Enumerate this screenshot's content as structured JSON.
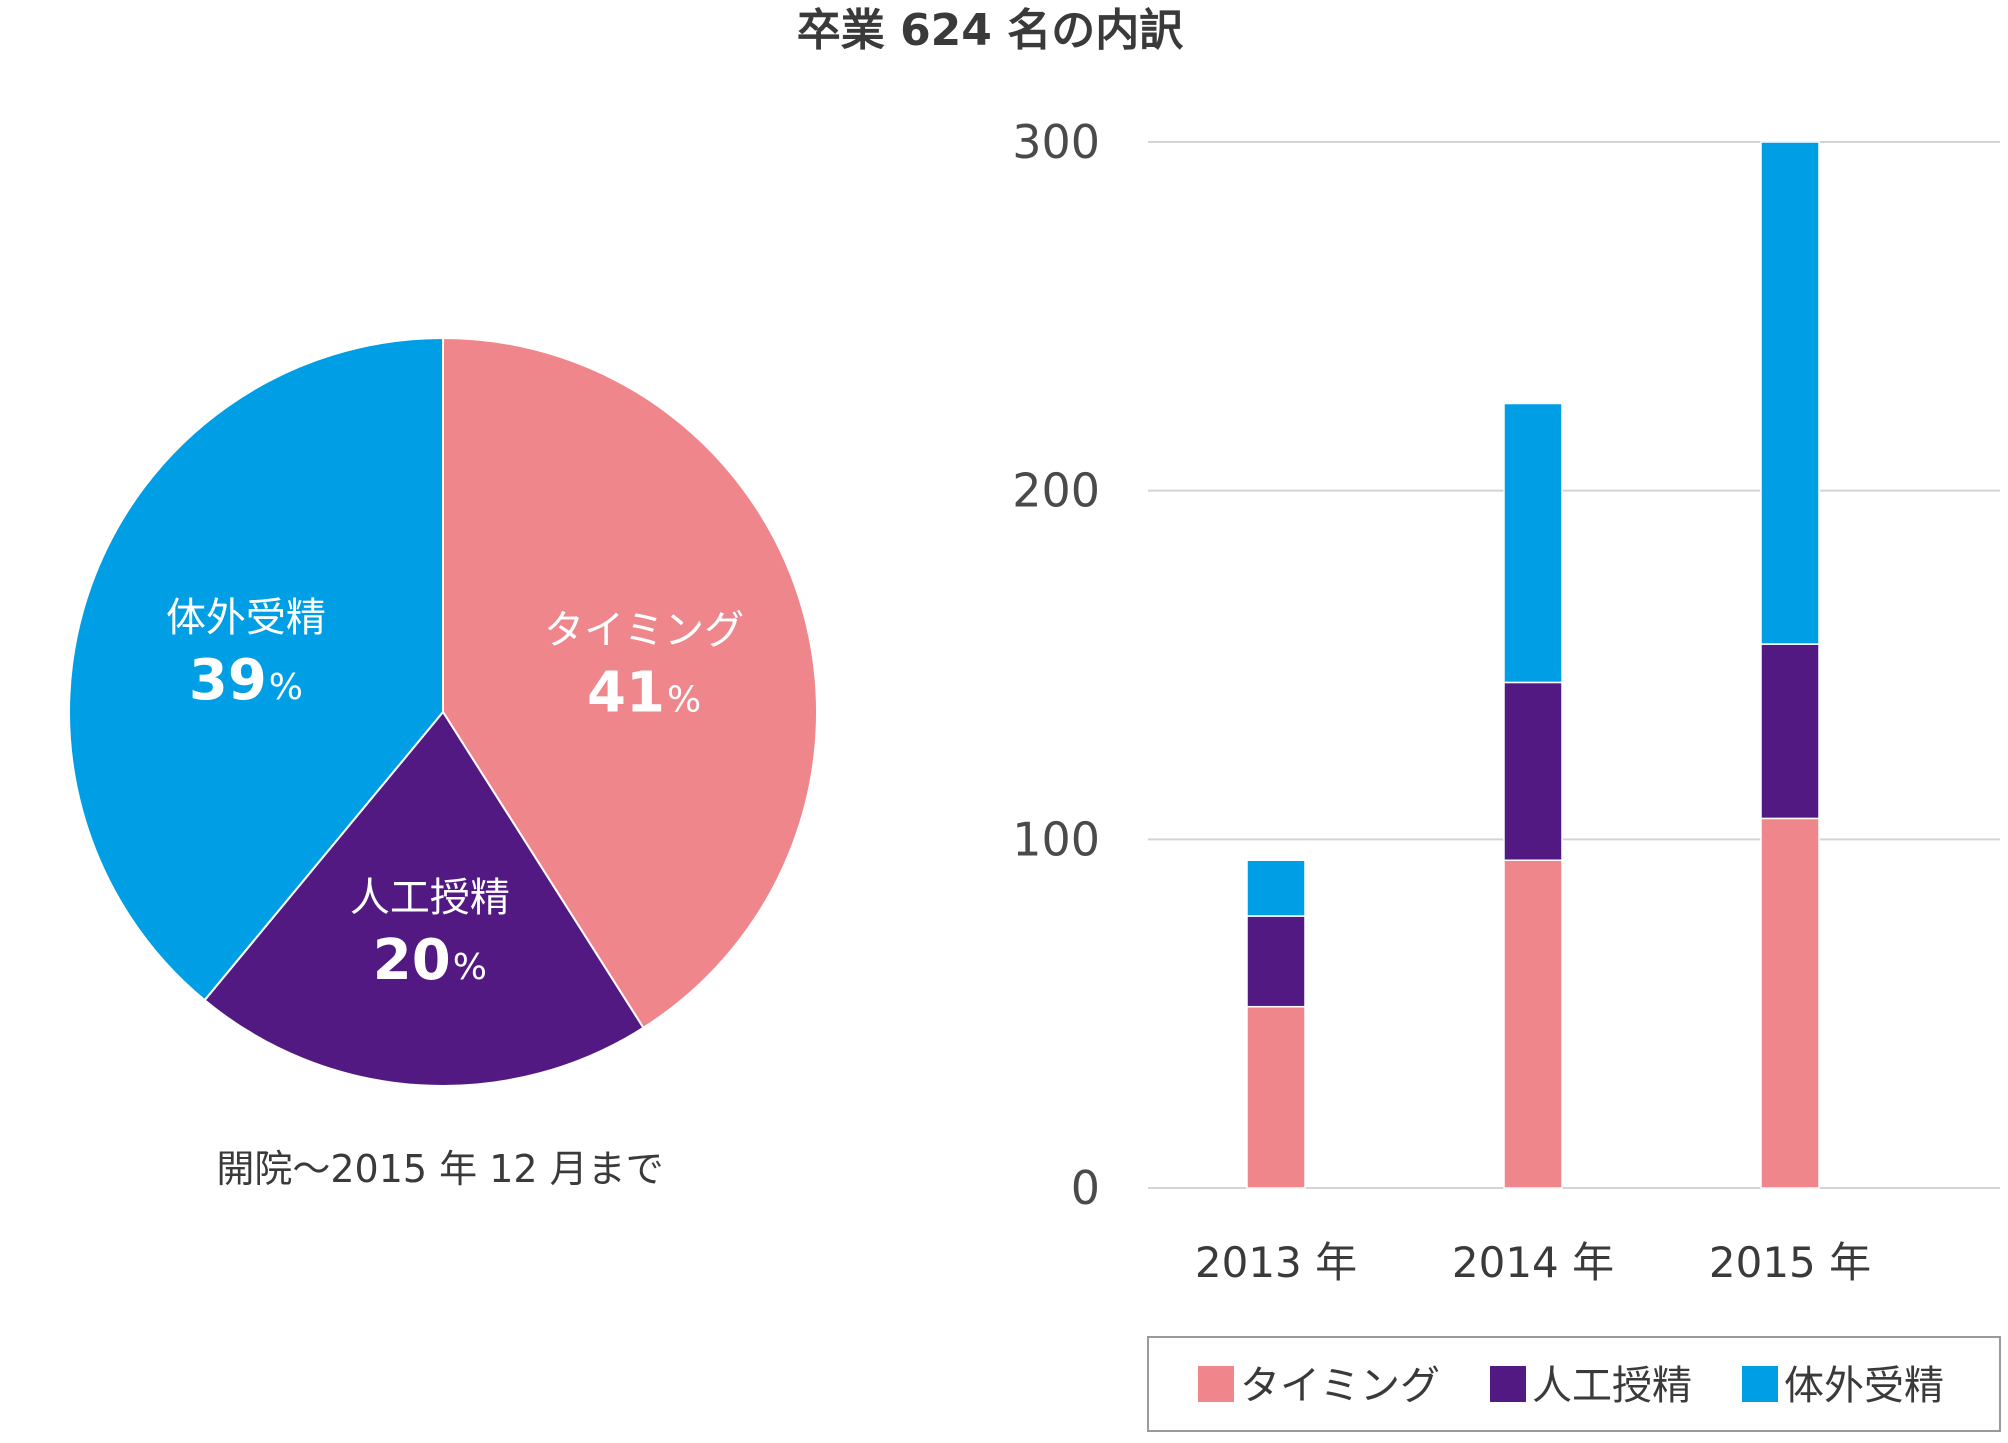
{
  "colors": {
    "timing": "#EF868C",
    "artificial": "#521983",
    "ivf": "#009FE5",
    "grid": "#d4d4d4",
    "text": "#3a3a3a"
  },
  "chart_data": [
    {
      "type": "pie",
      "title": "卒業 624 名の内訳",
      "slices": [
        {
          "name": "タイミング",
          "value": 41,
          "pct_sign": "%"
        },
        {
          "name": "人工授精",
          "value": 20,
          "pct_sign": "%"
        },
        {
          "name": "体外受精",
          "value": 39,
          "pct_sign": "%"
        }
      ],
      "note": "開院～2015 年 12 月まで"
    },
    {
      "type": "bar",
      "stacked": true,
      "categories": [
        "2013 年",
        "2014 年",
        "2015 年"
      ],
      "series": [
        {
          "name": "タイミング",
          "values": [
            52,
            94,
            106
          ]
        },
        {
          "name": "人工授精",
          "values": [
            26,
            51,
            50
          ]
        },
        {
          "name": "体外受精",
          "values": [
            16,
            80,
            144
          ]
        }
      ],
      "ylim": [
        0,
        300
      ],
      "yticks": [
        "0",
        "100",
        "200",
        "300"
      ],
      "grid": true,
      "legend_position": "bottom"
    }
  ]
}
